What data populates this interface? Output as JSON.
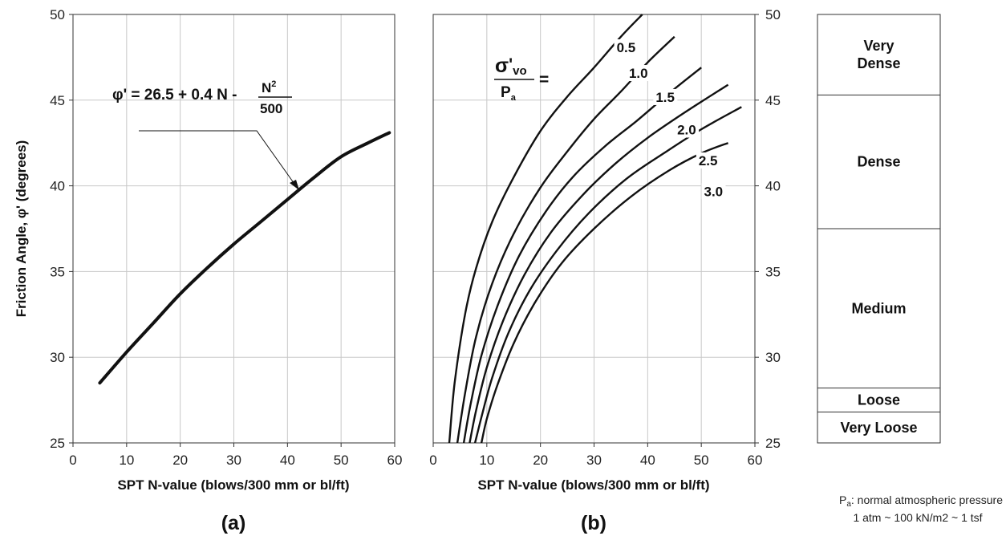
{
  "chart_data": [
    {
      "type": "line",
      "panel_label": "(a)",
      "xlabel": "SPT N-value (blows/300 mm or bl/ft)",
      "ylabel": "Friction Angle, φ' (degrees)",
      "xlim": [
        0,
        60
      ],
      "ylim": [
        25,
        50
      ],
      "xticks": [
        "0",
        "10",
        "20",
        "30",
        "40",
        "50",
        "60"
      ],
      "yticks": [
        "25",
        "30",
        "35",
        "40",
        "45",
        "50"
      ],
      "grid": true,
      "annotation": {
        "lhs": "φ' = 26.5 + 0.4 N -",
        "numerator": "N",
        "numerator_sup": "2",
        "denominator": "500"
      },
      "series": [
        {
          "x": [
            5,
            10,
            15,
            20,
            25,
            30,
            35,
            40,
            45,
            50,
            55,
            59
          ],
          "y": [
            28.5,
            30.3,
            32.0,
            33.7,
            35.2,
            36.6,
            37.9,
            39.2,
            40.5,
            41.7,
            42.5,
            43.1
          ]
        }
      ]
    },
    {
      "type": "line",
      "panel_label": "(b)",
      "xlabel": "SPT N-value (blows/300 mm or bl/ft)",
      "xlim": [
        0,
        60
      ],
      "ylim": [
        25,
        50
      ],
      "xticks": [
        "0",
        "10",
        "20",
        "30",
        "40",
        "50",
        "60"
      ],
      "yticks": [
        "25",
        "30",
        "35",
        "40",
        "45",
        "50"
      ],
      "grid": true,
      "ratio_label": {
        "sigma": "σ",
        "prime": "'",
        "sub": "vo",
        "P": "P",
        "P_sub": "a",
        "equals": "="
      },
      "series": [
        {
          "name": "0.5",
          "x": [
            3.0,
            4,
            6,
            8,
            11,
            15,
            20,
            25,
            30,
            35,
            39
          ],
          "y": [
            25,
            28.5,
            32.6,
            35.2,
            37.9,
            40.5,
            43.2,
            45.2,
            46.9,
            48.7,
            50
          ]
        },
        {
          "name": "1.0",
          "x": [
            4.5,
            6,
            8,
            11,
            15,
            20,
            25,
            30,
            35,
            40,
            45
          ],
          "y": [
            25,
            28.0,
            31.2,
            34.3,
            37.2,
            39.9,
            42.0,
            43.9,
            45.5,
            47.2,
            48.7
          ]
        },
        {
          "name": "1.5",
          "x": [
            5.7,
            7,
            9,
            12,
            16,
            21,
            26,
            32,
            38,
            44,
            50
          ],
          "y": [
            25,
            27.3,
            30.1,
            33.0,
            35.9,
            38.5,
            40.5,
            42.3,
            43.8,
            45.4,
            46.9
          ]
        },
        {
          "name": "2.0",
          "x": [
            6.8,
            8,
            10,
            13,
            17,
            22,
            28,
            34,
            40,
            47,
            55
          ],
          "y": [
            25,
            26.9,
            29.4,
            32.1,
            34.8,
            37.3,
            39.5,
            41.3,
            42.8,
            44.3,
            45.9
          ]
        },
        {
          "name": "2.5",
          "x": [
            7.8,
            9,
            11,
            14,
            18,
            23,
            29,
            36,
            43,
            50,
            57.5
          ],
          "y": [
            25,
            26.5,
            28.8,
            31.4,
            33.9,
            36.2,
            38.4,
            40.4,
            41.9,
            43.3,
            44.6
          ]
        },
        {
          "name": "3.0",
          "x": [
            9.0,
            10,
            12,
            15,
            19,
            24,
            30,
            37,
            44,
            50,
            55
          ],
          "y": [
            25,
            26.4,
            28.4,
            30.8,
            33.2,
            35.5,
            37.5,
            39.4,
            40.9,
            41.9,
            42.5
          ]
        }
      ]
    },
    {
      "type": "table",
      "yticks": [
        "25",
        "30",
        "35",
        "40",
        "45",
        "50"
      ],
      "ylim": [
        25,
        50
      ],
      "categories": [
        {
          "label_lines": [
            "Very",
            "Dense"
          ],
          "from": 45.3,
          "to": 50
        },
        {
          "label_lines": [
            "Dense"
          ],
          "from": 37.5,
          "to": 45.3
        },
        {
          "label_lines": [
            "Medium"
          ],
          "from": 28.2,
          "to": 37.5
        },
        {
          "label_lines": [
            "Loose"
          ],
          "from": 26.8,
          "to": 28.2
        },
        {
          "label_lines": [
            "Very Loose"
          ],
          "from": 25,
          "to": 26.8
        }
      ]
    }
  ],
  "footnote": {
    "line1_symbol": "P",
    "line1_sub": "a",
    "line1_text": ": normal atmospheric pressure =",
    "line2": "1 atm ~ 100 kN/m2 ~ 1 tsf"
  }
}
